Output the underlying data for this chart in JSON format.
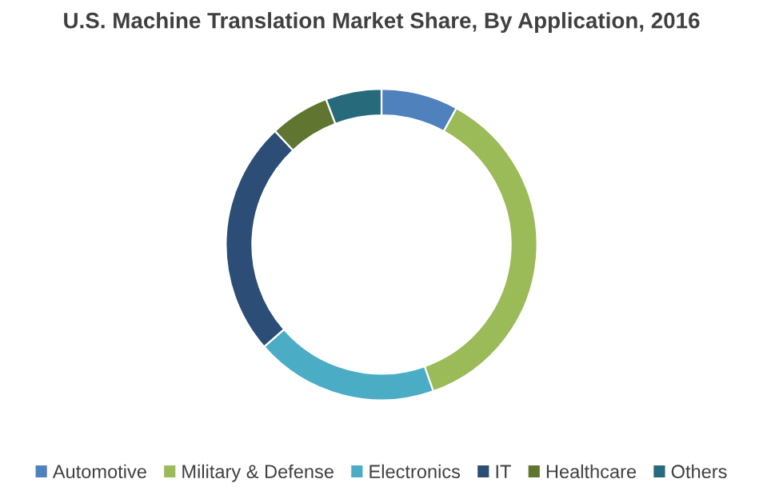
{
  "chart_data": {
    "type": "donut",
    "title": "U.S. Machine Translation Market Share, By Application, 2016",
    "categories": [
      "Automotive",
      "Military & Defense",
      "Electronics",
      "IT",
      "Healthcare",
      "Others"
    ],
    "values": [
      8,
      36.6,
      19,
      24.4,
      6.2,
      5.8
    ],
    "colors": [
      "#4f81bd",
      "#9bbb59",
      "#4bacc6",
      "#2c4d75",
      "#5f7530",
      "#276a7c"
    ],
    "legend": "bottom"
  }
}
